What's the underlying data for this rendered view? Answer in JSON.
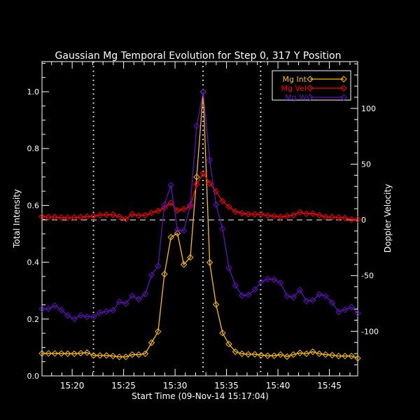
{
  "chart_data": {
    "type": "line",
    "title": "Gaussian Mg Temporal Evolution for Step 0, 317 Y Position",
    "xlabel": "Start Time (09-Nov-14 15:17:04)",
    "ylabel_left": "Total Intensity",
    "ylabel_right": "Doppler Velocity",
    "xlim": [
      "15:17:04",
      "15:47:45"
    ],
    "ylim_left": [
      0,
      1.106
    ],
    "ylim_right": [
      -140,
      142
    ],
    "x_ticks": [
      "15:20",
      "15:25",
      "15:30",
      "15:35",
      "15:40",
      "15:45"
    ],
    "y_ticks_left": [
      "0.0",
      "0.2",
      "0.4",
      "0.6",
      "0.8",
      "1.0"
    ],
    "y_ticks_right": [
      "-100",
      "-50",
      "0",
      "50",
      "100"
    ],
    "vertical_markers": [
      "15:22:04",
      "15:32:43",
      "15:38:19"
    ],
    "zero_line": {
      "axis": "right",
      "value": 0,
      "style": "dashed"
    },
    "grid": false,
    "legend_position": "top-right",
    "background": "#000000",
    "x": [
      "15:17:04",
      "15:17:42",
      "15:18:19",
      "15:18:57",
      "15:19:34",
      "15:20:12",
      "15:20:50",
      "15:21:27",
      "15:22:05",
      "15:22:42",
      "15:23:20",
      "15:23:58",
      "15:24:35",
      "15:25:13",
      "15:25:50",
      "15:26:28",
      "15:27:06",
      "15:27:43",
      "15:28:21",
      "15:28:58",
      "15:29:36",
      "15:30:14",
      "15:30:51",
      "15:31:29",
      "15:32:06",
      "15:32:44",
      "15:33:22",
      "15:33:59",
      "15:34:37",
      "15:35:14",
      "15:35:52",
      "15:36:30",
      "15:37:07",
      "15:37:45",
      "15:38:22",
      "15:39:00",
      "15:39:38",
      "15:40:15",
      "15:40:53",
      "15:41:30",
      "15:42:08",
      "15:42:46",
      "15:43:23",
      "15:44:01",
      "15:44:38",
      "15:45:16",
      "15:45:54",
      "15:46:31",
      "15:47:09",
      "15:47:46"
    ],
    "series": [
      {
        "name": "Mg Int",
        "axis": "left",
        "color": "#ffbf00",
        "values": [
          0.079,
          0.079,
          0.079,
          0.079,
          0.078,
          0.078,
          0.08,
          0.082,
          0.072,
          0.072,
          0.072,
          0.07,
          0.067,
          0.067,
          0.075,
          0.075,
          0.078,
          0.117,
          0.156,
          0.358,
          0.488,
          0.502,
          0.392,
          0.417,
          0.7,
          1.0,
          0.399,
          0.251,
          0.151,
          0.112,
          0.085,
          0.078,
          0.076,
          0.076,
          0.073,
          0.071,
          0.071,
          0.075,
          0.068,
          0.075,
          0.081,
          0.078,
          0.085,
          0.078,
          0.075,
          0.073,
          0.07,
          0.07,
          0.07,
          0.062
        ]
      },
      {
        "name": "Mg Vel",
        "axis": "right",
        "color": "#ff0000",
        "values": [
          2.9,
          2.5,
          2.5,
          2.1,
          1.9,
          2.1,
          2.5,
          2.9,
          3.4,
          4.2,
          4.6,
          4.6,
          2.9,
          0.8,
          5.0,
          3.8,
          4.2,
          6.3,
          8.0,
          10.9,
          15.1,
          8.4,
          9.6,
          12.2,
          31.9,
          41.9,
          32.7,
          25.6,
          16.8,
          11.7,
          7.5,
          5.9,
          5.0,
          5.0,
          5.0,
          3.8,
          3.4,
          2.5,
          3.4,
          4.2,
          6.7,
          5.5,
          5.5,
          4.2,
          2.5,
          2.5,
          2.1,
          1.7,
          0.4,
          0.4
        ]
      },
      {
        "name": "Mg W",
        "axis": "left",
        "color": "#6010c0",
        "values": [
          0.236,
          0.236,
          0.247,
          0.232,
          0.213,
          0.2,
          0.213,
          0.208,
          0.208,
          0.222,
          0.227,
          0.231,
          0.261,
          0.255,
          0.282,
          0.27,
          0.288,
          0.355,
          0.387,
          0.603,
          0.671,
          0.513,
          0.511,
          0.603,
          0.879,
          1.0,
          0.759,
          0.603,
          0.518,
          0.38,
          0.318,
          0.283,
          0.285,
          0.304,
          0.331,
          0.341,
          0.339,
          0.328,
          0.281,
          0.277,
          0.302,
          0.263,
          0.266,
          0.287,
          0.281,
          0.258,
          0.225,
          0.233,
          0.242,
          0.22
        ]
      }
    ]
  }
}
